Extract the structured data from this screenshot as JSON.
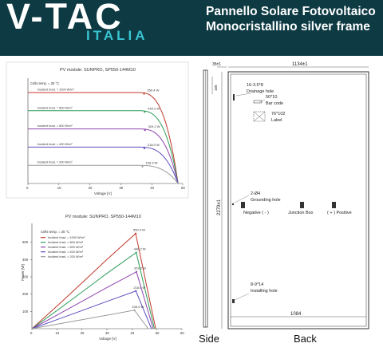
{
  "header": {
    "logo": "V-TAC",
    "logo_sub": "ITALIA",
    "title_line1": "Pannello Solare Fotovoltaico",
    "title_line2": "Monocristallino silver frame"
  },
  "chart_data": [
    {
      "type": "line",
      "title": "PV module:  SUNPRO,  SP550-144M10",
      "xlabel": "Voltage [V]",
      "ylabel": "",
      "note": "Cells temp. = 25 °C",
      "xlim": [
        0,
        50
      ],
      "xticks": [
        "0",
        "10",
        "20",
        "30",
        "40",
        "50"
      ],
      "series": [
        {
          "name": "Incident Irrad. = 1000 W/m²",
          "color": "#c0392b",
          "isc": 1.0,
          "end": "550.4 W",
          "pmp_v": 41.5
        },
        {
          "name": "Incident Irrad. = 800 W/m²",
          "color": "#2e9e5b",
          "isc": 0.8,
          "end": "440.2 W",
          "pmp_v": 41.7
        },
        {
          "name": "Incident Irrad. = 600 W/m²",
          "color": "#8e44ad",
          "isc": 0.6,
          "end": "329.2 W",
          "pmp_v": 41.8
        },
        {
          "name": "Incident Irrad. = 400 W/m²",
          "color": "#5b4fbf",
          "isc": 0.4,
          "end": "218.0 W",
          "pmp_v": 41.6
        },
        {
          "name": "Incident Irrad. = 200 W/m²",
          "color": "#9a9a9a",
          "isc": 0.2,
          "end": "106.9 W",
          "pmp_v": 41.0
        }
      ]
    },
    {
      "type": "line",
      "title": "PV module:  SUNPRO,  SP550-144M10",
      "xlabel": "Voltage [V]",
      "ylabel": "Power [W]",
      "note": "Cells temp. = 25 °C",
      "xlim": [
        0,
        60
      ],
      "xticks": [
        "0",
        "10",
        "20",
        "30",
        "40",
        "50",
        "60"
      ],
      "yticks": [
        "500",
        "400",
        "300",
        "200",
        "100"
      ],
      "series": [
        {
          "name": "Incident Irrad. = 1000 W/m²",
          "color": "#c0392b",
          "x": [
            0,
            10,
            20,
            30,
            41.5,
            49.5
          ],
          "y": [
            0,
            130,
            265,
            400,
            550.4,
            0
          ],
          "label": "550.4 W"
        },
        {
          "name": "Incident Irrad. = 800 W/m²",
          "color": "#2e9e5b",
          "x": [
            0,
            10,
            20,
            30,
            41.7,
            49.0
          ],
          "y": [
            0,
            105,
            212,
            320,
            440.2,
            0
          ],
          "label": "440.2 W"
        },
        {
          "name": "Incident Irrad. = 600 W/m²",
          "color": "#8e44ad",
          "x": [
            0,
            10,
            20,
            30,
            41.8,
            48.5
          ],
          "y": [
            0,
            78,
            158,
            238,
            329.2,
            0
          ],
          "label": "329.2 W"
        },
        {
          "name": "Incident Irrad. = 400 W/m²",
          "color": "#5b4fbf",
          "x": [
            0,
            10,
            20,
            30,
            41.6,
            47.8
          ],
          "y": [
            0,
            52,
            105,
            158,
            218.0,
            0
          ],
          "label": "218.0 W"
        },
        {
          "name": "Incident Irrad. = 200 W/m²",
          "color": "#9a9a9a",
          "x": [
            0,
            10,
            20,
            30,
            41.0,
            46.5
          ],
          "y": [
            0,
            26,
            52,
            78,
            106.9,
            0
          ],
          "label": "106.9 W"
        }
      ]
    }
  ],
  "drawing": {
    "side_label": "Side",
    "back_label": "Back",
    "dim_side_width": "35±1",
    "dim_width": "1134±1",
    "dim_height": "2279±1",
    "dim_160": "160",
    "dim_1084": "1084",
    "drainage_code": "16-3.5*8",
    "drainage_label": "Drainage hole",
    "barcode_size": "50*10",
    "barcode_label": "Bar code",
    "label_size": "76*102",
    "label_label": "Label",
    "grounding_code": "2-Ø4",
    "grounding_label": "Grounding hole",
    "negative_label": "Negative ( - )",
    "junction_label": "Junction Box",
    "positive_label": "( + ) Positive",
    "installing_code": "8-9*14",
    "installing_label": "Installing hole"
  }
}
